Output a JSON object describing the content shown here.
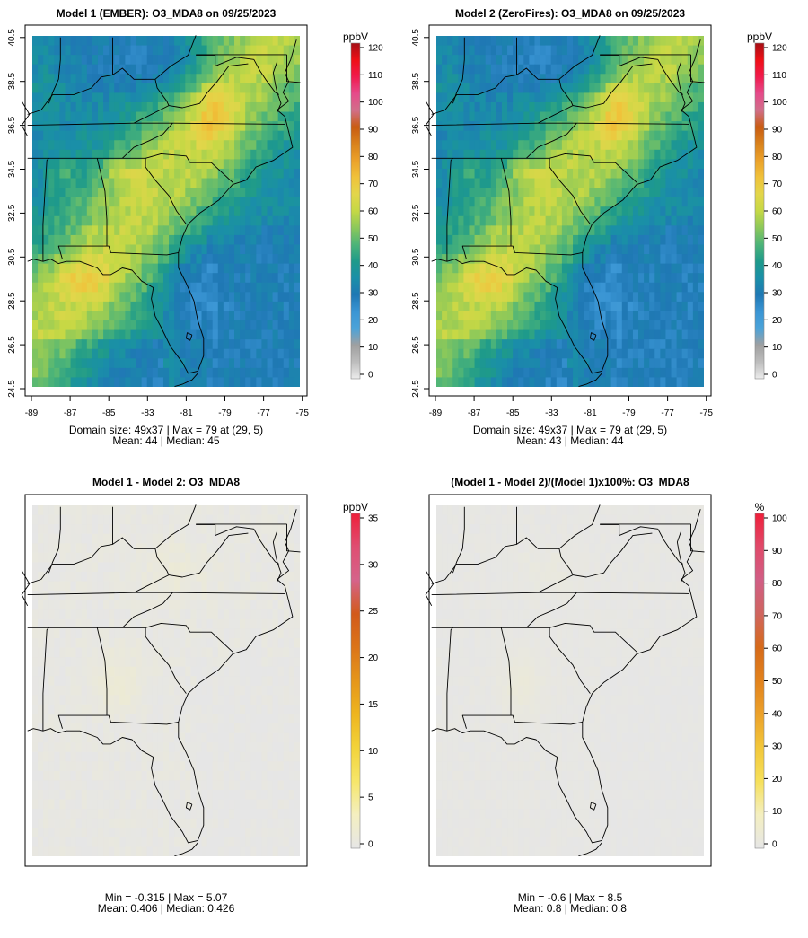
{
  "chart_data": [
    {
      "type": "heatmap",
      "title": "Model 1 (EMBER): O3_MDA8 on 09/25/2023",
      "x_ticks": [
        "-89",
        "-87",
        "-85",
        "-83",
        "-81",
        "-79",
        "-77",
        "-75"
      ],
      "y_ticks": [
        "24.5",
        "26.5",
        "28.5",
        "30.5",
        "32.5",
        "34.5",
        "36.5",
        "38.5",
        "40.5"
      ],
      "xlim": [
        -89.2,
        -74.8
      ],
      "ylim": [
        24.2,
        40.9
      ],
      "colorbar": {
        "unit": "ppbV",
        "ticks": [
          "0",
          "10",
          "20",
          "30",
          "40",
          "50",
          "60",
          "70",
          "80",
          "90",
          "100",
          "110",
          "120"
        ],
        "range": [
          0,
          120
        ]
      },
      "stats_line1": "Domain size: 49x37 | Max = 79 at (29, 5)",
      "stats_line2": "Mean: 44 |  Median: 45",
      "field": "model1"
    },
    {
      "type": "heatmap",
      "title": "Model 2 (ZeroFires): O3_MDA8 on 09/25/2023",
      "x_ticks": [
        "-89",
        "-87",
        "-85",
        "-83",
        "-81",
        "-79",
        "-77",
        "-75"
      ],
      "y_ticks": [
        "24.5",
        "26.5",
        "28.5",
        "30.5",
        "32.5",
        "34.5",
        "36.5",
        "38.5",
        "40.5"
      ],
      "xlim": [
        -89.2,
        -74.8
      ],
      "ylim": [
        24.2,
        40.9
      ],
      "colorbar": {
        "unit": "ppbV",
        "ticks": [
          "0",
          "10",
          "20",
          "30",
          "40",
          "50",
          "60",
          "70",
          "80",
          "90",
          "100",
          "110",
          "120"
        ],
        "range": [
          0,
          120
        ]
      },
      "stats_line1": "Domain size: 49x37 | Max = 79 at (29, 5)",
      "stats_line2": "Mean: 43 |  Median: 44",
      "field": "model2"
    },
    {
      "type": "heatmap",
      "title": "Model 1 - Model 2: O3_MDA8",
      "colorbar": {
        "unit": "ppbV",
        "ticks": [
          "0",
          "5",
          "10",
          "15",
          "20",
          "25",
          "30",
          "35"
        ],
        "range": [
          0,
          35
        ]
      },
      "stats_line1": "Min = -0.315 | Max = 5.07",
      "stats_line2": "Mean: 0.406 |  Median: 0.426",
      "field": "diff"
    },
    {
      "type": "heatmap",
      "title": "(Model 1 - Model 2)/(Model 1)x100%: O3_MDA8",
      "colorbar": {
        "unit": "%",
        "ticks": [
          "0",
          "10",
          "20",
          "30",
          "40",
          "50",
          "60",
          "70",
          "80",
          "90",
          "100"
        ],
        "range": [
          0,
          100
        ]
      },
      "stats_line1": "Min = -0.6 | Max = 8.5",
      "stats_line2": "Mean: 0.8 |  Median: 0.8",
      "field": "pct"
    }
  ],
  "colors": {
    "ozone_scale": [
      "#ececec",
      "#bdbdbd",
      "#a0a0a0",
      "#4ba3d9",
      "#3a95d4",
      "#1f78b4",
      "#1a8fa8",
      "#1e9a8a",
      "#4db478",
      "#8cc85a",
      "#c5d845",
      "#e3d64a",
      "#f0c23a",
      "#eba12a",
      "#d9821c",
      "#c95c12",
      "#d16f8a",
      "#e64a8a",
      "#f01b4d",
      "#ef0f16",
      "#a50f15"
    ],
    "diff_scale": [
      "#e6e6e6",
      "#f4efc0",
      "#f6e66a",
      "#f2d33a",
      "#eeb51f",
      "#e5961a",
      "#db7419",
      "#d25a1a",
      "#d5638a",
      "#df4e72",
      "#ef1f3a"
    ],
    "pct_scale": [
      "#e6e6e6",
      "#f4efc0",
      "#f6e05a",
      "#f2c73a",
      "#eca12a",
      "#e2821c",
      "#d66a1a",
      "#d0655f",
      "#d15e85",
      "#e04a6a",
      "#ef1f3a"
    ],
    "state_line": "#000000"
  }
}
